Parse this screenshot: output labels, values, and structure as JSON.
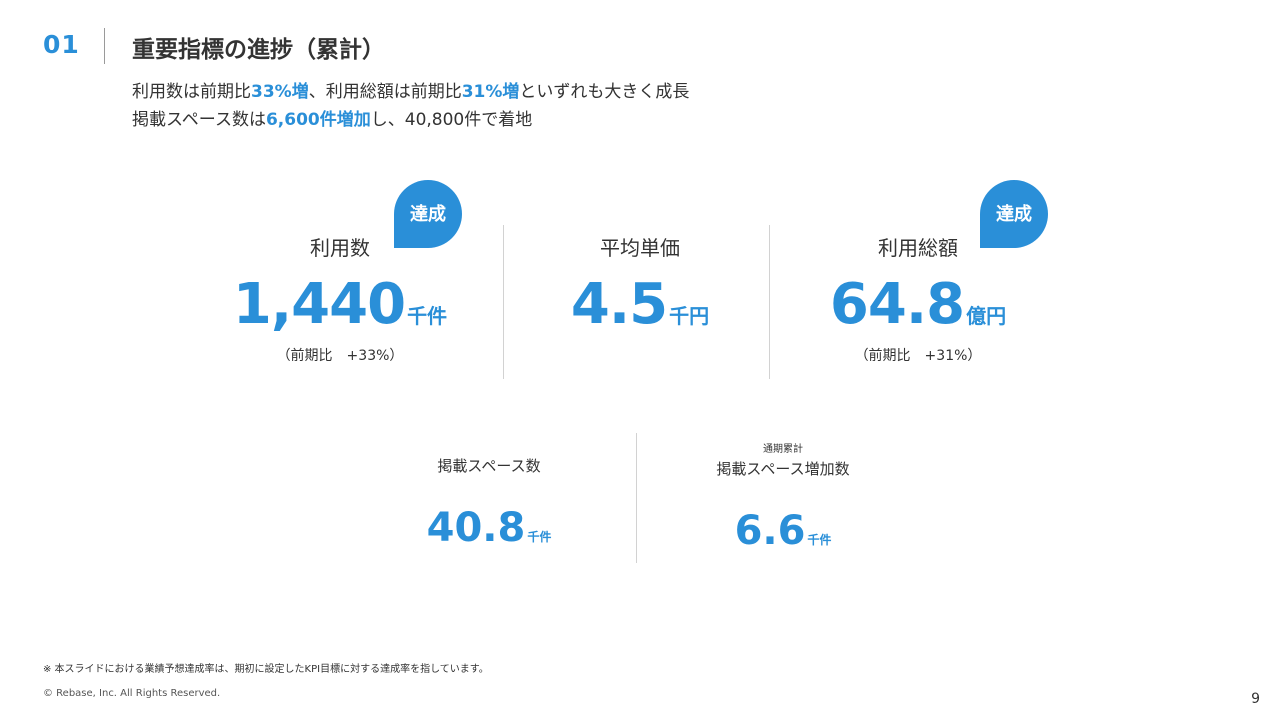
{
  "header": {
    "section_number": "01",
    "title": "重要指標の進捗（累計）"
  },
  "summary": {
    "line1": {
      "part1": "利用数は前期比",
      "highlight1": "33%増",
      "part2": "、利用総額は前期比",
      "highlight2": "31%増",
      "part3": "といずれも大きく成長"
    },
    "line2": {
      "part1": "掲載スペース数は",
      "highlight1": "6,600件増加",
      "part2": "し、40,800件で着地"
    }
  },
  "kpis": [
    {
      "label": "利用数",
      "value": "1,440",
      "unit": "千件",
      "note": "（前期比　+33%）",
      "badge": "達成"
    },
    {
      "label": "平均単価",
      "value": "4.5",
      "unit": "千円"
    },
    {
      "label": "利用総額",
      "value": "64.8",
      "unit": "億円",
      "note": "（前期比　+31%）",
      "badge": "達成"
    }
  ],
  "secondary_kpis": [
    {
      "label": "掲載スペース数",
      "value": "40.8",
      "unit": "千件"
    },
    {
      "caption": "通期累計",
      "label": "掲載スペース増加数",
      "value": "6.6",
      "unit": "千件"
    }
  ],
  "footer": {
    "note": "※ 本スライドにおける業績予想達成率は、期初に設定したKPI目標に対する達成率を指しています。",
    "copyright": "© Rebase, Inc. All Rights Reserved.",
    "page_number": "9"
  },
  "colors": {
    "accent": "#2a8fd8",
    "text": "#333333",
    "divider": "#d2d2d2"
  }
}
